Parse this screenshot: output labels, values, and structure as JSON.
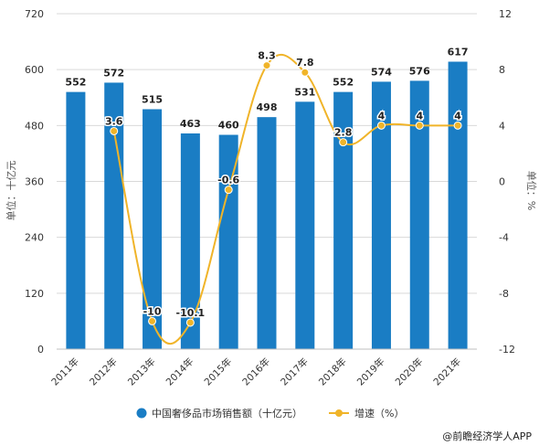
{
  "chart_data": {
    "type": "bar",
    "categories": [
      "2011年",
      "2012年",
      "2013年",
      "2014年",
      "2015年",
      "2016年",
      "2017年",
      "2018年",
      "2019年",
      "2020年",
      "2021年"
    ],
    "series": [
      {
        "name": "中国奢侈品市场销售额（十亿元）",
        "type": "bar",
        "axis": "left",
        "values": [
          552,
          572,
          515,
          463,
          460,
          498,
          531,
          552,
          574,
          576,
          617
        ],
        "labels": [
          "552",
          "572",
          "515",
          "463",
          "460",
          "498",
          "531",
          "552",
          "574",
          "576",
          "617"
        ]
      },
      {
        "name": "增速（%）",
        "type": "line",
        "axis": "right",
        "values": [
          null,
          3.6,
          -10,
          -10.1,
          -0.6,
          8.3,
          7.8,
          2.8,
          4,
          4,
          4
        ],
        "labels": [
          "",
          "3.6",
          "-10",
          "-10.1",
          "-0.6",
          "8.3",
          "7.8",
          "2.8",
          "4",
          "4",
          "4"
        ]
      }
    ],
    "yleft": {
      "label": "单位：十亿元",
      "ylim": [
        0,
        720
      ],
      "ticks": [
        "0",
        "120",
        "240",
        "360",
        "480",
        "600",
        "720"
      ]
    },
    "yright": {
      "label": "单位：%",
      "ylim": [
        -12,
        12
      ],
      "ticks": [
        "-12",
        "-8",
        "-4",
        "0",
        "4",
        "8",
        "12"
      ]
    },
    "grid": true,
    "legend": "bottom",
    "colors": {
      "bar": "#1a7dc4",
      "line": "#f0b429",
      "grid": "#d9d9d9"
    },
    "source": "@前瞻经济学人APP"
  }
}
